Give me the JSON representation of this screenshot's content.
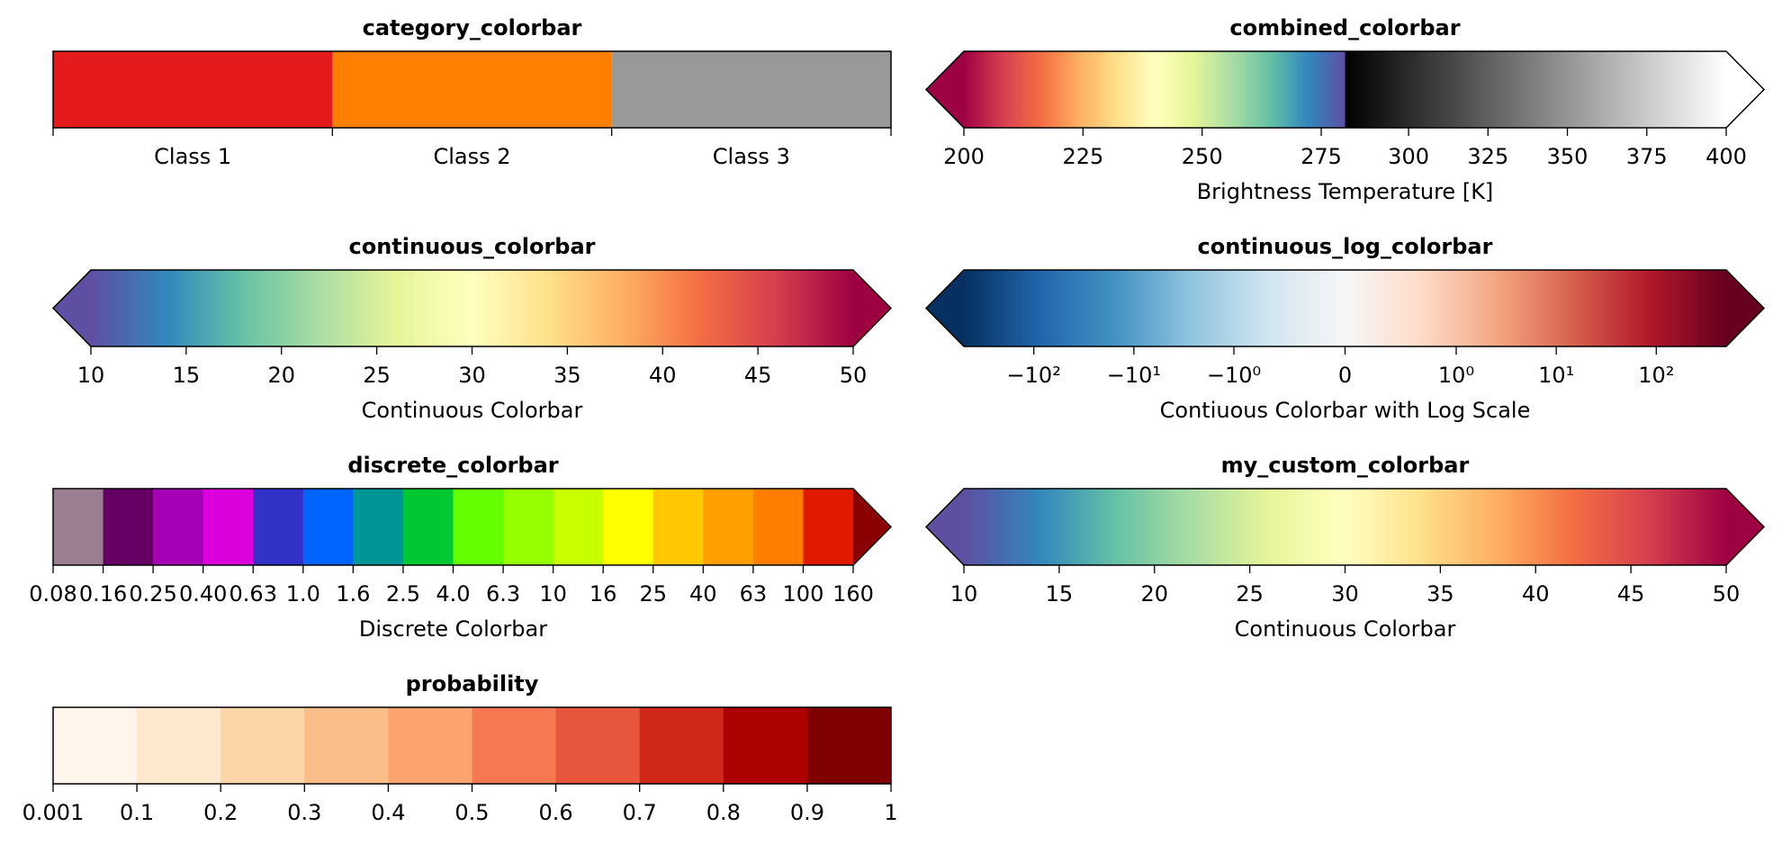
{
  "chart_data": [
    {
      "type": "colorbar",
      "title": "category_colorbar",
      "norm": "linear",
      "xlim": [
        0,
        3
      ],
      "boundaries": [
        0,
        1,
        2,
        3
      ],
      "colors": [
        "#e41a1c",
        "#ff7f00",
        "#999999"
      ],
      "xticks": [
        {
          "value": 0.5,
          "label": "Class 1"
        },
        {
          "value": 1.5,
          "label": "Class 2"
        },
        {
          "value": 2.5,
          "label": "Class 3"
        }
      ],
      "extend": "neither"
    },
    {
      "type": "colorbar",
      "title": "combined_colorbar",
      "xlabel": "Brightness Temperature [K]",
      "norm": "segments",
      "segments": [
        {
          "range": [
            200,
            280
          ],
          "colors": [
            "#9e0142",
            "#d53e4f",
            "#f46d43",
            "#fdae61",
            "#fee08b",
            "#ffffbf",
            "#e6f598",
            "#abdda4",
            "#66c2a5",
            "#3288bd",
            "#5e4fa2"
          ]
        },
        {
          "range": [
            280,
            400
          ],
          "colors": [
            "#000000",
            "#ffffff"
          ]
        }
      ],
      "xticks": [
        200,
        225,
        250,
        275,
        300,
        325,
        350,
        375,
        400
      ],
      "extend": "both"
    },
    {
      "type": "colorbar",
      "title": "continuous_colorbar",
      "xlabel": "Continuous Colorbar",
      "norm": "linear",
      "xlim": [
        10,
        50
      ],
      "colors": [
        "#5e4fa2",
        "#3288bd",
        "#66c2a5",
        "#abdda4",
        "#e6f598",
        "#ffffbf",
        "#fee08b",
        "#fdae61",
        "#f46d43",
        "#d53e4f",
        "#9e0142"
      ],
      "xticks": [
        10,
        15,
        20,
        25,
        30,
        35,
        40,
        45,
        50
      ],
      "extend": "both"
    },
    {
      "type": "colorbar",
      "title": "continuous_log_colorbar",
      "xlabel": "Contiuous Colorbar with Log Scale",
      "norm": "symlog",
      "linthresh": 1,
      "xlim": [
        -500,
        500
      ],
      "colors": [
        "#053061",
        "#2166ac",
        "#4393c3",
        "#92c5de",
        "#d1e5f0",
        "#f7f7f7",
        "#fddbc7",
        "#f4a582",
        "#d6604d",
        "#b2182b",
        "#67001f"
      ],
      "xticks": [
        {
          "value": -100,
          "label": "−10²"
        },
        {
          "value": -10,
          "label": "−10¹"
        },
        {
          "value": -1,
          "label": "−10⁰"
        },
        0,
        {
          "value": 1,
          "label": "10⁰"
        },
        {
          "value": 10,
          "label": "10¹"
        },
        {
          "value": 100,
          "label": "10²"
        }
      ],
      "extend": "both"
    },
    {
      "type": "colorbar",
      "title": "discrete_colorbar",
      "xlabel": "Discrete Colorbar",
      "norm": "boundary",
      "xticks": [
        0.08,
        0.16,
        0.25,
        {
          "value": 0.4,
          "label": "0.40"
        },
        0.63,
        {
          "value": 1,
          "label": "1.0"
        },
        1.6,
        2.5,
        {
          "value": 4,
          "label": "4.0"
        },
        6.3,
        10,
        16,
        25,
        40,
        63,
        100,
        160
      ],
      "colors": [
        "#9c7e93",
        "#650065",
        "#a600b6",
        "#dc00dc",
        "#3232c8",
        "#0064ff",
        "#009696",
        "#00c832",
        "#64ff00",
        "#96ff00",
        "#c8ff00",
        "#ffff00",
        "#ffc800",
        "#ffa000",
        "#ff7d00",
        "#e11900"
      ],
      "over_color": "#8b0000",
      "extend": "max"
    },
    {
      "type": "colorbar",
      "title": "my_custom_colorbar",
      "xlabel": "Continuous Colorbar",
      "norm": "linear",
      "xlim": [
        10,
        50
      ],
      "colors": [
        "#5e4fa2",
        "#3288bd",
        "#66c2a5",
        "#abdda4",
        "#e6f598",
        "#ffffbf",
        "#fee08b",
        "#fdae61",
        "#f46d43",
        "#d53e4f",
        "#9e0142"
      ],
      "xticks": [
        10,
        15,
        20,
        25,
        30,
        35,
        40,
        45,
        50
      ],
      "extend": "both"
    },
    {
      "type": "colorbar",
      "title": "probability",
      "norm": "boundary",
      "xticks": [
        0.001,
        0.1,
        0.2,
        0.3,
        0.4,
        0.5,
        0.6,
        0.7,
        0.8,
        0.9,
        1
      ],
      "colors": [
        "#fff5eb",
        "#fde8cd",
        "#fcd5a6",
        "#fcbe88",
        "#fca46e",
        "#f67952",
        "#e8553d",
        "#cf2818",
        "#ad0000",
        "#7e0000"
      ],
      "extend": "neither"
    }
  ]
}
